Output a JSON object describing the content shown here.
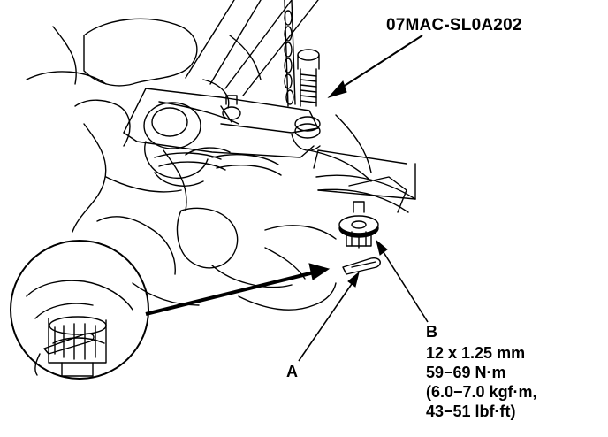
{
  "diagram": {
    "tool_label": "07MAC-SL0A202",
    "callouts": {
      "a": "A",
      "b": "B"
    },
    "torque_spec": [
      "12 x 1.25 mm",
      "59−69 N·m",
      "(6.0−7.0 kgf·m,",
      "43−51 lbf·ft)"
    ]
  },
  "colors": {
    "line": "#000000",
    "background": "#ffffff"
  }
}
